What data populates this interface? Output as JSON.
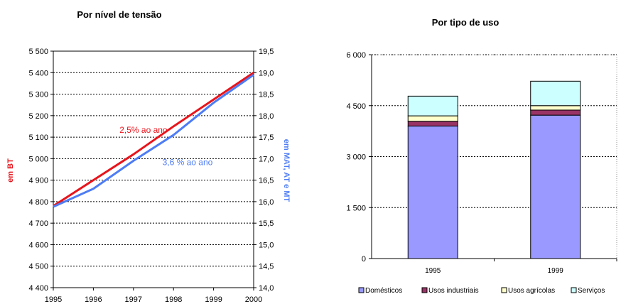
{
  "chart_data": [
    {
      "type": "line",
      "title": "Por nível de tensão",
      "x": [
        1995,
        1996,
        1997,
        1998,
        1999,
        2000
      ],
      "xlim": [
        1995,
        2000
      ],
      "y_left": {
        "label": "em BT",
        "ylim": [
          4400,
          5500
        ],
        "ticks": [
          "4 400",
          "4 500",
          "4 600",
          "4 700",
          "4 800",
          "4 900",
          "5 000",
          "5 100",
          "5 200",
          "5 300",
          "5 400",
          "5 500"
        ]
      },
      "y_right": {
        "label": "em MAT, AT e MT",
        "ylim": [
          14.0,
          19.5
        ],
        "ticks": [
          "14,0",
          "14,5",
          "15,0",
          "15,5",
          "16,0",
          "16,5",
          "17,0",
          "17,5",
          "18,0",
          "18,5",
          "19,0",
          "19,5"
        ]
      },
      "grid": true,
      "series": [
        {
          "name": "",
          "axis": "left",
          "color": "#e8141b",
          "values": [
            4780,
            4900,
            5020,
            5150,
            5275,
            5400
          ],
          "annotation": "2,5% ao ano"
        },
        {
          "name": "",
          "axis": "right",
          "color": "#4d7cf5",
          "values": [
            15.88,
            16.3,
            16.95,
            17.55,
            18.3,
            18.95
          ],
          "annotation": "3,6 % ao ano"
        }
      ]
    },
    {
      "type": "bar",
      "stacked": true,
      "title": "Por tipo de uso",
      "categories": [
        "1995",
        "1999"
      ],
      "ylim": [
        0,
        6000
      ],
      "yticks": [
        "0",
        "1 500",
        "3 000",
        "4 500",
        "6 000"
      ],
      "grid": true,
      "legend": "bottom",
      "series": [
        {
          "name": "Domésticos",
          "color": "#9999ff",
          "values": [
            3900,
            4220
          ]
        },
        {
          "name": "Usos industriais",
          "color": "#993366",
          "values": [
            140,
            150
          ]
        },
        {
          "name": "Usos agrícolas",
          "color": "#ffffcc",
          "values": [
            160,
            130
          ]
        },
        {
          "name": "Serviços",
          "color": "#ccffff",
          "values": [
            580,
            720
          ]
        }
      ]
    }
  ]
}
